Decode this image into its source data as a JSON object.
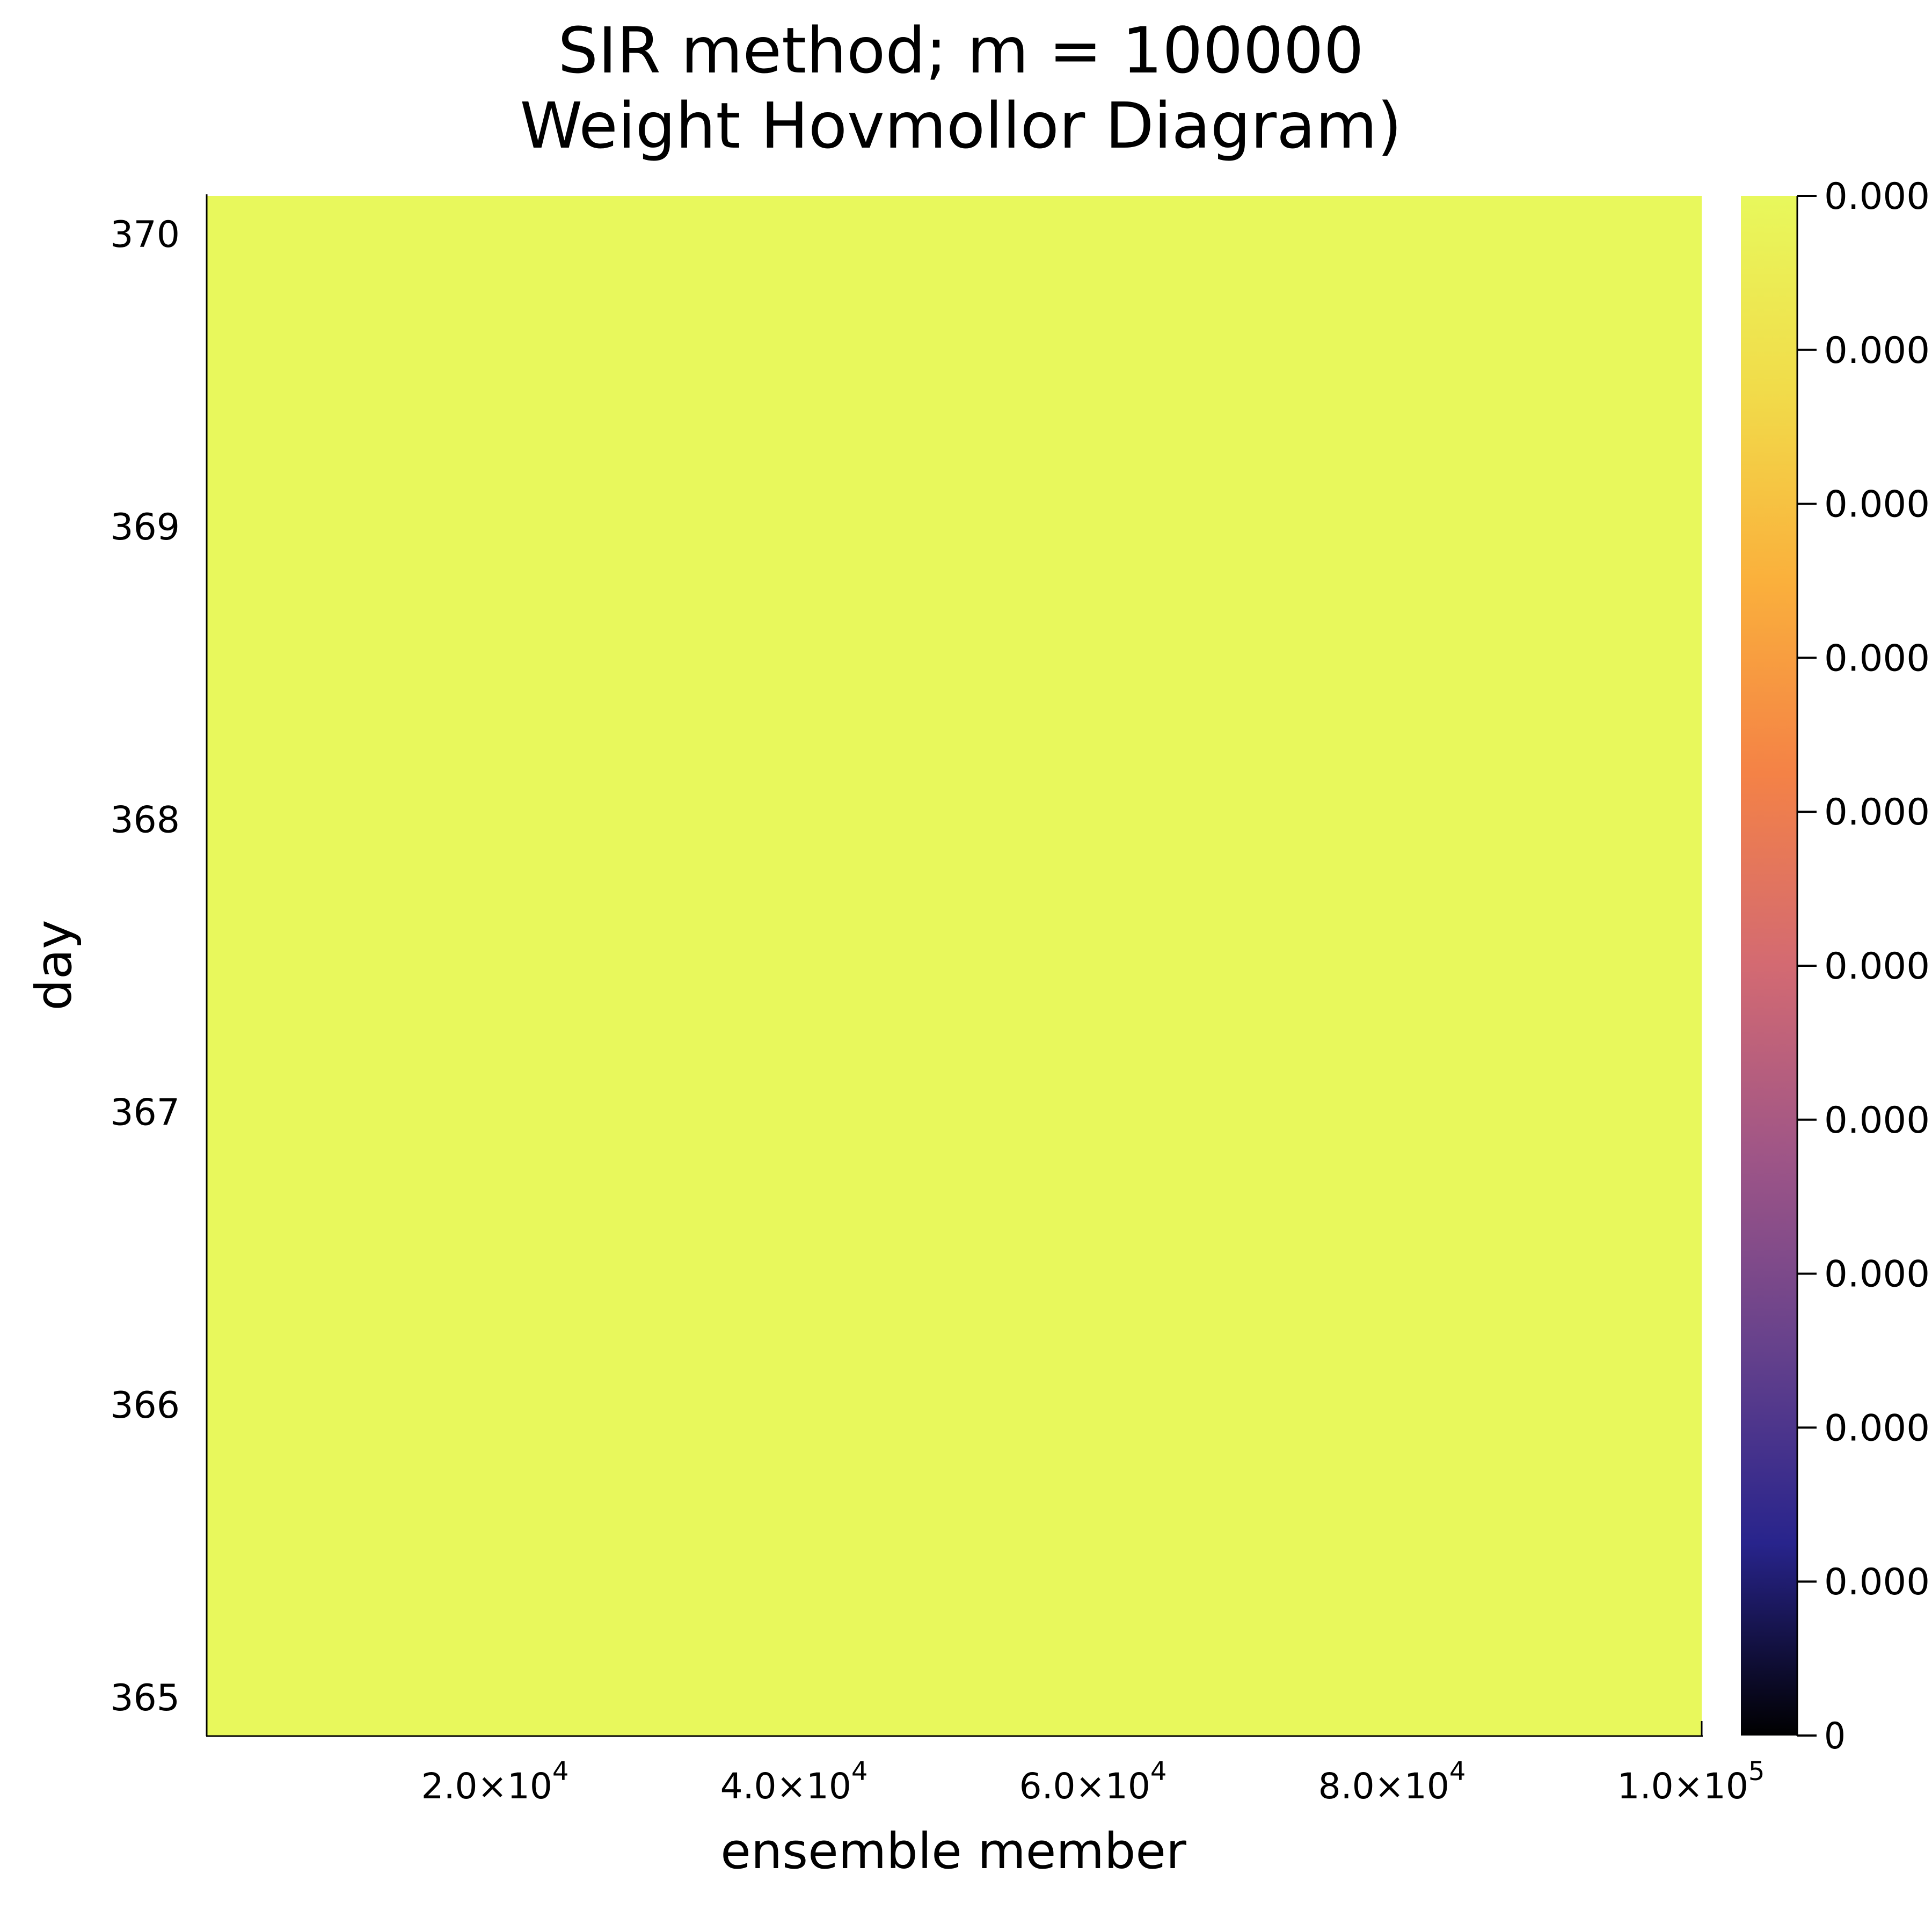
{
  "chart_data": {
    "type": "heatmap",
    "title": "SIR method; m = 100000",
    "subtitle": "Weight Hovmollor Diagram)",
    "xlabel": "ensemble member",
    "ylabel": "day",
    "x_range": [
      1,
      100000
    ],
    "y_range": [
      364.87,
      370.13
    ],
    "x_ticks": [
      {
        "value": 20000,
        "mantissa": "2.0×10",
        "exp": "4"
      },
      {
        "value": 40000,
        "mantissa": "4.0×10",
        "exp": "4"
      },
      {
        "value": 60000,
        "mantissa": "6.0×10",
        "exp": "4"
      },
      {
        "value": 80000,
        "mantissa": "8.0×10",
        "exp": "4"
      },
      {
        "value": 100000,
        "mantissa": "1.0×10",
        "exp": "5"
      }
    ],
    "y_ticks": [
      {
        "value": 365,
        "label": "365"
      },
      {
        "value": 366,
        "label": "366"
      },
      {
        "value": 367,
        "label": "367"
      },
      {
        "value": 368,
        "label": "368"
      },
      {
        "value": 369,
        "label": "369"
      },
      {
        "value": 370,
        "label": "370"
      }
    ],
    "cell_color": "#e8f85c",
    "colorbar": {
      "range": [
        0,
        1e-05
      ],
      "tick_labels": [
        "0.000",
        "0.000",
        "0.000",
        "0.000",
        "0.000",
        "0.000",
        "0.000",
        "0.000",
        "0.000",
        "0.000",
        "0"
      ],
      "colormap": [
        "#000000",
        "#28248c",
        "#65418c",
        "#9e5587",
        "#d36a72",
        "#f48246",
        "#fab03c",
        "#f1dc4a",
        "#e8f85c"
      ]
    },
    "grid": false
  }
}
